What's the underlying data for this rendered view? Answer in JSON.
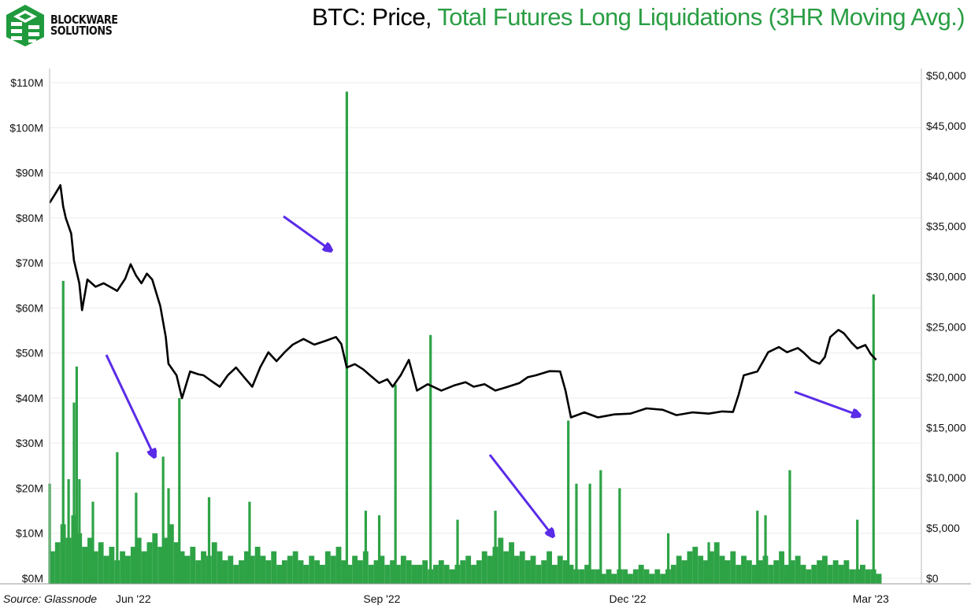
{
  "header": {
    "logo_text_line1": "BLOCKWARE",
    "logo_text_line2": "SOLUTIONS",
    "title_part1": "BTC: Price, ",
    "title_part2": "Total Futures Long Liquidations (3HR Moving Avg.)"
  },
  "source": "Source: Glassnode",
  "colors": {
    "price": "#000000",
    "liquidations": "#2ea346",
    "arrow": "#5a2be8",
    "title_green": "#2a9e44"
  },
  "chart_data": {
    "type": "bar+line",
    "title": "BTC: Price, Total Futures Long Liquidations (3HR Moving Avg.)",
    "x_unit": "days since 2022-05-01",
    "x_range": [
      0,
      308
    ],
    "x_ticks": [
      {
        "label": "Jun '22",
        "day": 31
      },
      {
        "label": "Sep '22",
        "day": 123
      },
      {
        "label": "Dec '22",
        "day": 214
      },
      {
        "label": "Mar '23",
        "day": 304
      }
    ],
    "left_axis": {
      "label": "Total Futures Long Liquidations",
      "range": [
        0,
        110
      ],
      "unit": "$M",
      "ticks": [
        "$0M",
        "$10M",
        "$20M",
        "$30M",
        "$40M",
        "$50M",
        "$60M",
        "$70M",
        "$80M",
        "$90M",
        "$100M",
        "$110M"
      ]
    },
    "right_axis": {
      "label": "BTC Price",
      "range": [
        0,
        50000
      ],
      "unit": "USD",
      "ticks": [
        "$0",
        "$5,000",
        "$10,000",
        "$15,000",
        "$20,000",
        "$25,000",
        "$30,000",
        "$35,000",
        "$40,000",
        "$45,000",
        "$50,000"
      ]
    },
    "series": [
      {
        "name": "BTC Price",
        "type": "line",
        "axis": "right",
        "points": [
          [
            0,
            37340
          ],
          [
            2,
            38200
          ],
          [
            4,
            39090
          ],
          [
            5,
            37000
          ],
          [
            6,
            35810
          ],
          [
            8,
            34290
          ],
          [
            9,
            31620
          ],
          [
            11,
            29340
          ],
          [
            12,
            26670
          ],
          [
            14,
            29720
          ],
          [
            17,
            29000
          ],
          [
            20,
            29340
          ],
          [
            23,
            28900
          ],
          [
            25,
            28580
          ],
          [
            28,
            29800
          ],
          [
            30,
            31240
          ],
          [
            32,
            30100
          ],
          [
            34,
            29340
          ],
          [
            36,
            30300
          ],
          [
            38,
            29720
          ],
          [
            41,
            27050
          ],
          [
            43,
            24000
          ],
          [
            44,
            21340
          ],
          [
            47,
            20190
          ],
          [
            49,
            17910
          ],
          [
            52,
            20570
          ],
          [
            55,
            20300
          ],
          [
            57,
            20190
          ],
          [
            60,
            19600
          ],
          [
            63,
            19050
          ],
          [
            66,
            20200
          ],
          [
            69,
            20960
          ],
          [
            72,
            20000
          ],
          [
            75,
            19050
          ],
          [
            78,
            21000
          ],
          [
            81,
            22480
          ],
          [
            84,
            21600
          ],
          [
            87,
            22480
          ],
          [
            90,
            23240
          ],
          [
            94,
            23800
          ],
          [
            98,
            23240
          ],
          [
            102,
            23600
          ],
          [
            106,
            24000
          ],
          [
            108,
            23300
          ],
          [
            110,
            20960
          ],
          [
            113,
            21300
          ],
          [
            116,
            20800
          ],
          [
            119,
            20100
          ],
          [
            122,
            19430
          ],
          [
            125,
            19800
          ],
          [
            127,
            19050
          ],
          [
            130,
            20200
          ],
          [
            133,
            21720
          ],
          [
            136,
            18670
          ],
          [
            140,
            19300
          ],
          [
            145,
            18670
          ],
          [
            150,
            19200
          ],
          [
            154,
            19500
          ],
          [
            157,
            19050
          ],
          [
            161,
            19300
          ],
          [
            165,
            18670
          ],
          [
            169,
            19000
          ],
          [
            174,
            19430
          ],
          [
            177,
            20000
          ],
          [
            180,
            20190
          ],
          [
            185,
            20600
          ],
          [
            189,
            20570
          ],
          [
            191,
            18670
          ],
          [
            193,
            16000
          ],
          [
            198,
            16500
          ],
          [
            203,
            16000
          ],
          [
            209,
            16300
          ],
          [
            215,
            16380
          ],
          [
            221,
            16900
          ],
          [
            227,
            16760
          ],
          [
            232,
            16230
          ],
          [
            238,
            16500
          ],
          [
            244,
            16380
          ],
          [
            249,
            16600
          ],
          [
            253,
            16540
          ],
          [
            255,
            18200
          ],
          [
            257,
            20190
          ],
          [
            262,
            20570
          ],
          [
            264,
            21500
          ],
          [
            266,
            22480
          ],
          [
            270,
            23000
          ],
          [
            273,
            22480
          ],
          [
            277,
            22900
          ],
          [
            279,
            22480
          ],
          [
            282,
            21700
          ],
          [
            285,
            21340
          ],
          [
            287,
            22000
          ],
          [
            289,
            24000
          ],
          [
            292,
            24700
          ],
          [
            294,
            24380
          ],
          [
            297,
            23400
          ],
          [
            299,
            22860
          ],
          [
            302,
            23200
          ],
          [
            304,
            22300
          ],
          [
            306,
            21720
          ]
        ]
      },
      {
        "name": "Total Futures Long Liquidations (3HR Moving Avg.)",
        "type": "bar",
        "axis": "left",
        "unit": "$M",
        "baseline_step_days": 2,
        "baseline": [
          6,
          8,
          12,
          9,
          14,
          10,
          7,
          9,
          6,
          8,
          5,
          7,
          4,
          6,
          5,
          7,
          9,
          6,
          8,
          10,
          7,
          9,
          12,
          8,
          6,
          5,
          7,
          4,
          6,
          5,
          8,
          6,
          4,
          5,
          3,
          4,
          6,
          5,
          7,
          5,
          4,
          6,
          3,
          4,
          5,
          6,
          4,
          3,
          5,
          4,
          3,
          6,
          5,
          7,
          4,
          3,
          5,
          4,
          6,
          3,
          4,
          5,
          3,
          4,
          3,
          5,
          4,
          3,
          3,
          4,
          2,
          3,
          4,
          3,
          2,
          3,
          4,
          5,
          3,
          4,
          6,
          5,
          7,
          9,
          6,
          8,
          5,
          6,
          4,
          5,
          3,
          4,
          6,
          3,
          5,
          4,
          3,
          2,
          2,
          3,
          2,
          2,
          1,
          2,
          1,
          2,
          2,
          1,
          2,
          3,
          2,
          1,
          2,
          1,
          2,
          3,
          5,
          4,
          6,
          7,
          5,
          4,
          6,
          8,
          5,
          4,
          6,
          3,
          5,
          4,
          3,
          4,
          5,
          3,
          4,
          6,
          3,
          4,
          5,
          3,
          2,
          3,
          4,
          5,
          3,
          4,
          3,
          4,
          2,
          2,
          3,
          2,
          2,
          1
        ],
        "spikes": [
          [
            0,
            21
          ],
          [
            5,
            66
          ],
          [
            7,
            22
          ],
          [
            9,
            39
          ],
          [
            10,
            47
          ],
          [
            11,
            22
          ],
          [
            16,
            17
          ],
          [
            25,
            28
          ],
          [
            32,
            19
          ],
          [
            42,
            27
          ],
          [
            44,
            20
          ],
          [
            48,
            40
          ],
          [
            59,
            18
          ],
          [
            74,
            17
          ],
          [
            110,
            108
          ],
          [
            117,
            15
          ],
          [
            122,
            14
          ],
          [
            128,
            43
          ],
          [
            141,
            54
          ],
          [
            151,
            13
          ],
          [
            165,
            15
          ],
          [
            192,
            35
          ],
          [
            195,
            21
          ],
          [
            200,
            21
          ],
          [
            204,
            24
          ],
          [
            211,
            20
          ],
          [
            229,
            10
          ],
          [
            244,
            8
          ],
          [
            262,
            15
          ],
          [
            265,
            14
          ],
          [
            274,
            24
          ],
          [
            299,
            13
          ],
          [
            305,
            63
          ]
        ]
      }
    ],
    "annotations": [
      "arrow to late-May spike",
      "arrow to Jun '22 spike",
      "arrow to Aug '22 $108M spike",
      "arrow to Nov '22 FTX spike",
      "arrow to Mar '23 spike"
    ],
    "grid": true,
    "legend": "title"
  }
}
